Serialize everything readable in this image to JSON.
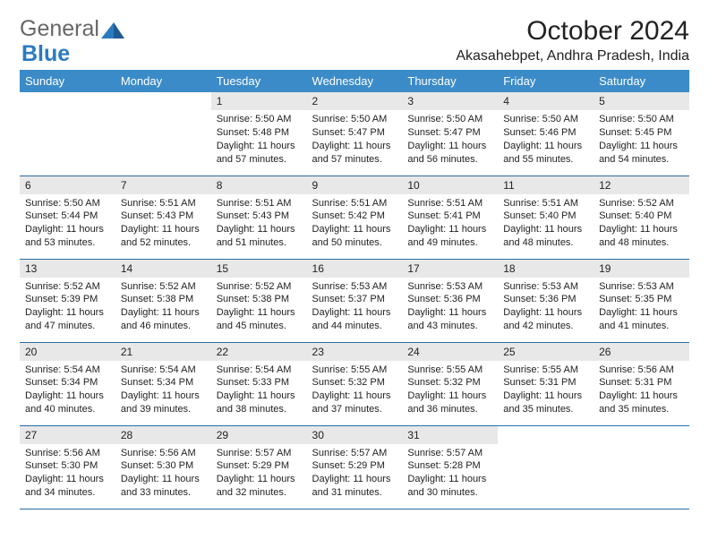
{
  "brand": {
    "part1": "General",
    "part2": "Blue"
  },
  "title": "October 2024",
  "location": "Akasahebpet, Andhra Pradesh, India",
  "colors": {
    "header_bg": "#3b8bc8",
    "header_text": "#ffffff",
    "daynum_bg": "#e8e8e8",
    "border": "#2a6ea3",
    "text": "#222222",
    "brand_gray": "#676767",
    "brand_blue": "#2a7ac0"
  },
  "day_headers": [
    "Sunday",
    "Monday",
    "Tuesday",
    "Wednesday",
    "Thursday",
    "Friday",
    "Saturday"
  ],
  "labels": {
    "sunrise": "Sunrise: ",
    "sunset": "Sunset: ",
    "daylight": "Daylight: "
  },
  "weeks": [
    [
      null,
      null,
      {
        "n": "1",
        "sunrise": "5:50 AM",
        "sunset": "5:48 PM",
        "daylight": "11 hours and 57 minutes."
      },
      {
        "n": "2",
        "sunrise": "5:50 AM",
        "sunset": "5:47 PM",
        "daylight": "11 hours and 57 minutes."
      },
      {
        "n": "3",
        "sunrise": "5:50 AM",
        "sunset": "5:47 PM",
        "daylight": "11 hours and 56 minutes."
      },
      {
        "n": "4",
        "sunrise": "5:50 AM",
        "sunset": "5:46 PM",
        "daylight": "11 hours and 55 minutes."
      },
      {
        "n": "5",
        "sunrise": "5:50 AM",
        "sunset": "5:45 PM",
        "daylight": "11 hours and 54 minutes."
      }
    ],
    [
      {
        "n": "6",
        "sunrise": "5:50 AM",
        "sunset": "5:44 PM",
        "daylight": "11 hours and 53 minutes."
      },
      {
        "n": "7",
        "sunrise": "5:51 AM",
        "sunset": "5:43 PM",
        "daylight": "11 hours and 52 minutes."
      },
      {
        "n": "8",
        "sunrise": "5:51 AM",
        "sunset": "5:43 PM",
        "daylight": "11 hours and 51 minutes."
      },
      {
        "n": "9",
        "sunrise": "5:51 AM",
        "sunset": "5:42 PM",
        "daylight": "11 hours and 50 minutes."
      },
      {
        "n": "10",
        "sunrise": "5:51 AM",
        "sunset": "5:41 PM",
        "daylight": "11 hours and 49 minutes."
      },
      {
        "n": "11",
        "sunrise": "5:51 AM",
        "sunset": "5:40 PM",
        "daylight": "11 hours and 48 minutes."
      },
      {
        "n": "12",
        "sunrise": "5:52 AM",
        "sunset": "5:40 PM",
        "daylight": "11 hours and 48 minutes."
      }
    ],
    [
      {
        "n": "13",
        "sunrise": "5:52 AM",
        "sunset": "5:39 PM",
        "daylight": "11 hours and 47 minutes."
      },
      {
        "n": "14",
        "sunrise": "5:52 AM",
        "sunset": "5:38 PM",
        "daylight": "11 hours and 46 minutes."
      },
      {
        "n": "15",
        "sunrise": "5:52 AM",
        "sunset": "5:38 PM",
        "daylight": "11 hours and 45 minutes."
      },
      {
        "n": "16",
        "sunrise": "5:53 AM",
        "sunset": "5:37 PM",
        "daylight": "11 hours and 44 minutes."
      },
      {
        "n": "17",
        "sunrise": "5:53 AM",
        "sunset": "5:36 PM",
        "daylight": "11 hours and 43 minutes."
      },
      {
        "n": "18",
        "sunrise": "5:53 AM",
        "sunset": "5:36 PM",
        "daylight": "11 hours and 42 minutes."
      },
      {
        "n": "19",
        "sunrise": "5:53 AM",
        "sunset": "5:35 PM",
        "daylight": "11 hours and 41 minutes."
      }
    ],
    [
      {
        "n": "20",
        "sunrise": "5:54 AM",
        "sunset": "5:34 PM",
        "daylight": "11 hours and 40 minutes."
      },
      {
        "n": "21",
        "sunrise": "5:54 AM",
        "sunset": "5:34 PM",
        "daylight": "11 hours and 39 minutes."
      },
      {
        "n": "22",
        "sunrise": "5:54 AM",
        "sunset": "5:33 PM",
        "daylight": "11 hours and 38 minutes."
      },
      {
        "n": "23",
        "sunrise": "5:55 AM",
        "sunset": "5:32 PM",
        "daylight": "11 hours and 37 minutes."
      },
      {
        "n": "24",
        "sunrise": "5:55 AM",
        "sunset": "5:32 PM",
        "daylight": "11 hours and 36 minutes."
      },
      {
        "n": "25",
        "sunrise": "5:55 AM",
        "sunset": "5:31 PM",
        "daylight": "11 hours and 35 minutes."
      },
      {
        "n": "26",
        "sunrise": "5:56 AM",
        "sunset": "5:31 PM",
        "daylight": "11 hours and 35 minutes."
      }
    ],
    [
      {
        "n": "27",
        "sunrise": "5:56 AM",
        "sunset": "5:30 PM",
        "daylight": "11 hours and 34 minutes."
      },
      {
        "n": "28",
        "sunrise": "5:56 AM",
        "sunset": "5:30 PM",
        "daylight": "11 hours and 33 minutes."
      },
      {
        "n": "29",
        "sunrise": "5:57 AM",
        "sunset": "5:29 PM",
        "daylight": "11 hours and 32 minutes."
      },
      {
        "n": "30",
        "sunrise": "5:57 AM",
        "sunset": "5:29 PM",
        "daylight": "11 hours and 31 minutes."
      },
      {
        "n": "31",
        "sunrise": "5:57 AM",
        "sunset": "5:28 PM",
        "daylight": "11 hours and 30 minutes."
      },
      null,
      null
    ]
  ]
}
